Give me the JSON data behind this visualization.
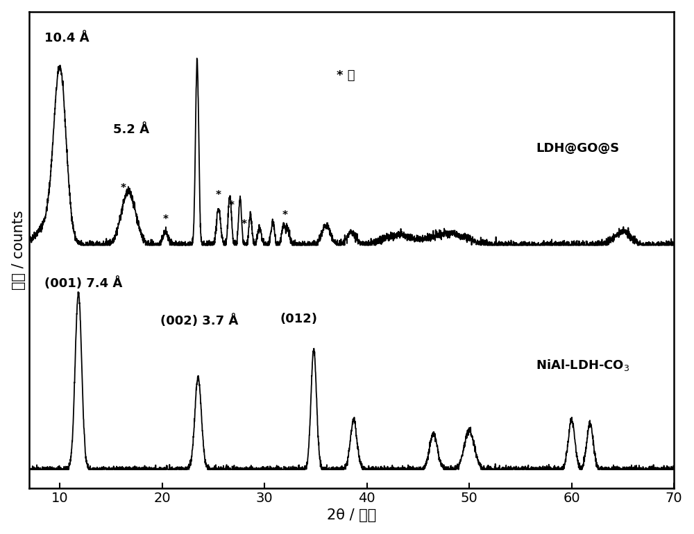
{
  "xlabel": "2θ / 度数",
  "ylabel": "强度 / counts",
  "xlim": [
    7,
    70
  ],
  "xticks": [
    10,
    20,
    30,
    40,
    50,
    60,
    70
  ],
  "background_color": "#ffffff",
  "label1": "LDH@GO@S",
  "label2": "NiAl-LDH-CO₃",
  "line_color": "#000000",
  "axis_fontsize": 15,
  "label_fontsize": 13,
  "tick_fontsize": 14,
  "annotation_fontsize": 13
}
